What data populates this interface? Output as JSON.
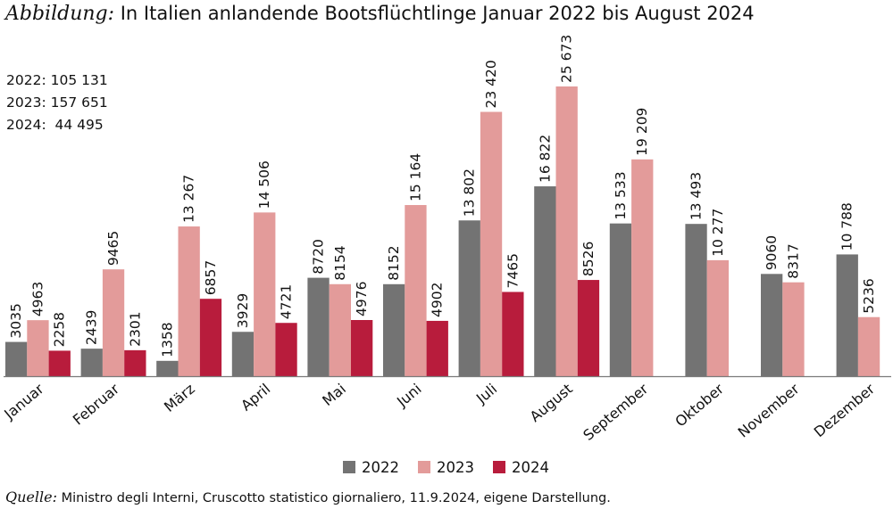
{
  "title": {
    "prefix": "Abbildung:",
    "text": "In Italien anlandende Bootsflüchtlinge Januar 2022 bis August 2024"
  },
  "totals": [
    {
      "label": "2022:",
      "value": "105 131"
    },
    {
      "label": "2023:",
      "value": "157 651"
    },
    {
      "label": "2024:",
      "value": " 44 495"
    }
  ],
  "source": {
    "prefix": "Quelle:",
    "text": "Ministro degli Interni, Cruscotto statistico giornaliero, 11.9.2024, eigene Darstellung."
  },
  "colors": {
    "2022": "#737373",
    "2023": "#e39b9a",
    "2024": "#b81c3c",
    "axis": "#7a7a7a"
  },
  "chart_data": {
    "type": "bar",
    "categories": [
      "Januar",
      "Februar",
      "März",
      "April",
      "Mai",
      "Juni",
      "Juli",
      "August",
      "September",
      "Oktober",
      "November",
      "Dezember"
    ],
    "series": [
      {
        "name": "2022",
        "values": [
          3035,
          2439,
          1358,
          3929,
          8720,
          8152,
          13802,
          16822,
          13533,
          13493,
          9060,
          10788
        ],
        "labels": [
          "3035",
          "2439",
          "1358",
          "3929",
          "8720",
          "8152",
          "13 802",
          "16 822",
          "13 533",
          "13 493",
          "9060",
          "10 788"
        ]
      },
      {
        "name": "2023",
        "values": [
          4963,
          9465,
          13267,
          14506,
          8154,
          15164,
          23420,
          25673,
          19209,
          10277,
          8317,
          5236
        ],
        "labels": [
          "4963",
          "9465",
          "13 267",
          "14 506",
          "8154",
          "15 164",
          "23 420",
          "25 673",
          "19 209",
          "10 277",
          "8317",
          "5236"
        ]
      },
      {
        "name": "2024",
        "values": [
          2258,
          2301,
          6857,
          4721,
          4976,
          4902,
          7465,
          8526,
          null,
          null,
          null,
          null
        ],
        "labels": [
          "2258",
          "2301",
          "6857",
          "4721",
          "4976",
          "4902",
          "7465",
          "8526",
          null,
          null,
          null,
          null
        ]
      }
    ],
    "ylim": [
      0,
      30000
    ],
    "grid": false,
    "legend": "bottom-center"
  }
}
